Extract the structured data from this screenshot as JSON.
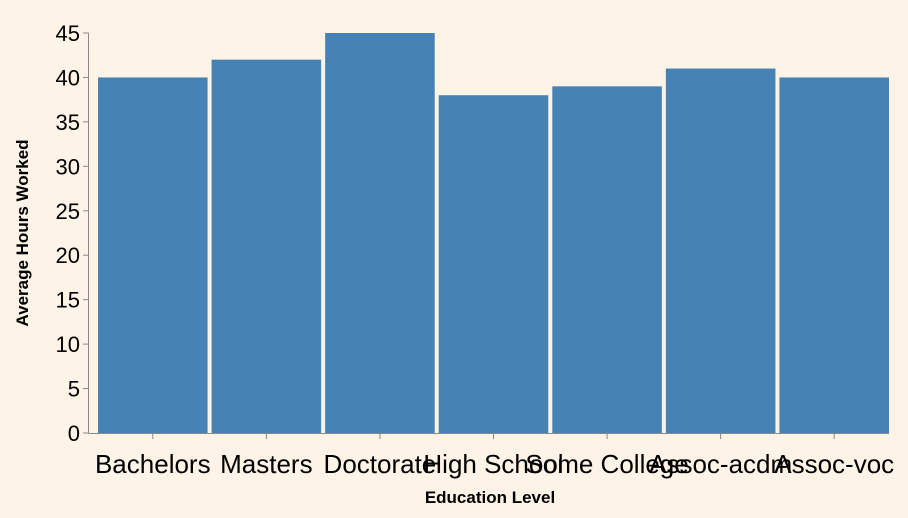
{
  "colors": {
    "background": "#fdf3e6",
    "bar": "#4682b4",
    "axis": "#888888"
  },
  "chart_data": {
    "type": "bar",
    "categories": [
      "Bachelors",
      "Masters",
      "Doctorate",
      "High School",
      "Some College",
      "Assoc-acdm",
      "Assoc-voc"
    ],
    "values": [
      40,
      42,
      45,
      38,
      39,
      41,
      40
    ],
    "xlabel": "Education Level",
    "ylabel": "Average Hours Worked",
    "ylim": [
      0,
      45
    ],
    "yticks": [
      0,
      5,
      10,
      15,
      20,
      25,
      30,
      35,
      40,
      45
    ],
    "grid": false,
    "legend": "none"
  }
}
